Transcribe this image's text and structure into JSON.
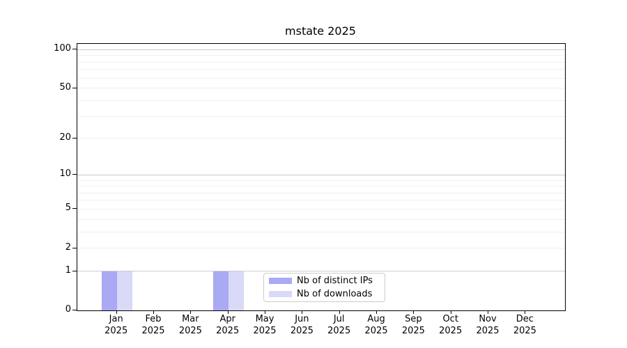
{
  "title": "mstate 2025",
  "chart_data": {
    "type": "bar",
    "title": "mstate 2025",
    "categories": [
      "Jan 2025",
      "Feb 2025",
      "Mar 2025",
      "Apr 2025",
      "May 2025",
      "Jun 2025",
      "Jul 2025",
      "Aug 2025",
      "Sep 2025",
      "Oct 2025",
      "Nov 2025",
      "Dec 2025"
    ],
    "series": [
      {
        "name": "Nb of distinct IPs",
        "color": "#a9a9f4",
        "values": [
          1,
          0,
          0,
          1,
          0,
          0,
          0,
          0,
          0,
          0,
          0,
          0
        ]
      },
      {
        "name": "Nb of downloads",
        "color": "#d9d9f8",
        "values": [
          1,
          0,
          0,
          1,
          0,
          0,
          0,
          0,
          0,
          0,
          0,
          0
        ]
      }
    ],
    "xlabel": "",
    "ylabel": "",
    "yscale": "log1p",
    "ylim": [
      0,
      110
    ],
    "ytick_values": [
      100,
      50,
      20,
      10,
      5,
      2,
      1,
      0
    ],
    "ytick_labels": [
      "100",
      "50",
      "20",
      "10",
      "5",
      "2",
      "1",
      "0"
    ],
    "major_gridlines": [
      1,
      10,
      100
    ],
    "minor_gridlines": [
      2,
      3,
      4,
      5,
      6,
      7,
      8,
      9,
      20,
      30,
      40,
      50,
      60,
      70,
      80,
      90
    ],
    "grid": "horizontal",
    "legend_position": "lower center"
  },
  "legend": {
    "items": [
      {
        "label": "Nb of distinct IPs",
        "swatch_color": "#a9a9f4"
      },
      {
        "label": "Nb of downloads",
        "swatch_color": "#d9d9f8"
      }
    ]
  },
  "colors": {
    "background": "#ffffff",
    "bar_distinct_ips": "#a9a9f4",
    "bar_downloads": "#d9d9f8",
    "grid_major": "#cccccc",
    "grid_minor": "#f0f0f0",
    "axis_frame": "#000000",
    "legend_border": "#cccccc",
    "text": "#000000"
  }
}
